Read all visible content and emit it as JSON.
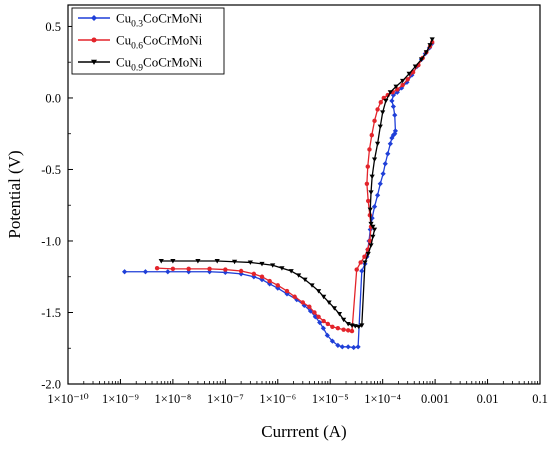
{
  "chart_data": {
    "type": "line",
    "title": "",
    "xlabel": "Currrent (A)",
    "ylabel": "Potential (V)",
    "xscale": "log",
    "xlim": [
      1e-10,
      0.1
    ],
    "ylim": [
      -2.0,
      0.65
    ],
    "grid": false,
    "legend_position": "top-left",
    "x_tick_labels": [
      "1×10⁻¹⁰",
      "1×10⁻⁹",
      "1×10⁻⁸",
      "1×10⁻⁷",
      "1×10⁻⁶",
      "1×10⁻⁵",
      "1×10⁻⁴",
      "0.001",
      "0.01",
      "0.1"
    ],
    "x_tick_values": [
      1e-10,
      1e-09,
      1e-08,
      1e-07,
      1e-06,
      1e-05,
      0.0001,
      0.001,
      0.01,
      0.1
    ],
    "y_tick_labels": [
      "0.5",
      "0.0",
      "-0.5",
      "-1.0",
      "-1.5",
      "-2.0"
    ],
    "y_tick_values": [
      0.5,
      0.0,
      -0.5,
      -1.0,
      -1.5,
      -2.0
    ],
    "series": [
      {
        "name_base": "Cu",
        "name_sub": "0.3",
        "name_rest": "CoCrMoNi",
        "color": "#1f3fd8",
        "marker": "diamond",
        "x": [
          1.2e-09,
          3e-09,
          8e-09,
          2e-08,
          5e-08,
          1e-07,
          2e-07,
          3.5e-07,
          5e-07,
          7e-07,
          1e-06,
          1.5e-06,
          2.3e-06,
          3.2e-06,
          4.2e-06,
          5.2e-06,
          6.3e-06,
          7.4e-06,
          8.8e-06,
          1.1e-05,
          1.4e-05,
          1.7e-05,
          2.2e-05,
          2.8e-05,
          3.4e-05,
          4e-05,
          4.6e-05,
          5e-05,
          5.2e-05,
          5.5e-05,
          5.8e-05,
          6.3e-05,
          7e-05,
          8e-05,
          9e-05,
          0.000102,
          0.000112,
          0.000125,
          0.00014,
          0.00015,
          0.00016,
          0.00017,
          0.000175,
          0.00017,
          0.00016,
          0.00015,
          0.00016,
          0.00019,
          0.00023,
          0.00029,
          0.00036,
          0.00045,
          0.00055,
          0.00065,
          0.00078,
          0.00087
        ],
        "y": [
          -1.215,
          -1.215,
          -1.215,
          -1.215,
          -1.215,
          -1.22,
          -1.23,
          -1.25,
          -1.27,
          -1.3,
          -1.33,
          -1.37,
          -1.41,
          -1.45,
          -1.49,
          -1.53,
          -1.57,
          -1.61,
          -1.66,
          -1.7,
          -1.73,
          -1.74,
          -1.74,
          -1.745,
          -1.74,
          -1.21,
          -1.16,
          -1.11,
          -1.06,
          -1.0,
          -0.92,
          -0.84,
          -0.76,
          -0.68,
          -0.6,
          -0.53,
          -0.46,
          -0.39,
          -0.32,
          -0.28,
          -0.26,
          -0.25,
          -0.23,
          -0.12,
          -0.06,
          -0.02,
          0.02,
          0.04,
          0.07,
          0.11,
          0.16,
          0.22,
          0.27,
          0.31,
          0.35,
          0.38
        ]
      },
      {
        "name_base": "Cu",
        "name_sub": "0.6",
        "name_rest": "CoCrMoNi",
        "color": "#e3242b",
        "marker": "circle",
        "x": [
          5e-09,
          1e-08,
          2e-08,
          5e-08,
          1e-07,
          2e-07,
          3.5e-07,
          5e-07,
          7e-07,
          1e-06,
          1.5e-06,
          2.1e-06,
          3e-06,
          4e-06,
          5e-06,
          6e-06,
          7.5e-06,
          9e-06,
          1.1e-05,
          1.4e-05,
          1.8e-05,
          2.2e-05,
          2.6e-05,
          3.2e-05,
          3.8e-05,
          4.5e-05,
          5.2e-05,
          5.7e-05,
          6e-05,
          5.7e-05,
          5.3e-05,
          5e-05,
          5.2e-05,
          5.6e-05,
          6.2e-05,
          7e-05,
          8e-05,
          9.2e-05,
          0.000105,
          0.000125,
          0.000155,
          0.00019,
          0.00024,
          0.0003,
          0.00038,
          0.00048,
          0.00058,
          0.00068,
          0.0008,
          0.00088
        ],
        "y": [
          -1.19,
          -1.195,
          -1.195,
          -1.195,
          -1.2,
          -1.21,
          -1.23,
          -1.25,
          -1.28,
          -1.31,
          -1.35,
          -1.39,
          -1.43,
          -1.46,
          -1.5,
          -1.53,
          -1.56,
          -1.58,
          -1.6,
          -1.61,
          -1.62,
          -1.625,
          -1.63,
          -1.2,
          -1.15,
          -1.11,
          -1.06,
          -1.0,
          -0.9,
          -0.82,
          -0.72,
          -0.6,
          -0.48,
          -0.36,
          -0.26,
          -0.16,
          -0.08,
          -0.03,
          0.0,
          0.02,
          0.04,
          0.06,
          0.09,
          0.13,
          0.18,
          0.23,
          0.28,
          0.32,
          0.36,
          0.39
        ]
      },
      {
        "name_base": "Cu",
        "name_sub": "0.9",
        "name_rest": "CoCrMoNi",
        "color": "#000000",
        "marker": "triangle-down",
        "x": [
          6e-09,
          1e-08,
          3e-08,
          7e-08,
          1.5e-07,
          3e-07,
          5e-07,
          8e-07,
          1.2e-06,
          1.8e-06,
          2.5e-06,
          3.3e-06,
          4.5e-06,
          6e-06,
          7.5e-06,
          9.5e-06,
          1.2e-05,
          1.5e-05,
          1.8e-05,
          2.2e-05,
          2.6e-05,
          3e-05,
          3.5e-05,
          4e-05,
          4.6e-05,
          5.3e-05,
          6e-05,
          6.5e-05,
          7e-05,
          6.5e-05,
          6e-05,
          5.8e-05,
          6e-05,
          6.3e-05,
          7e-05,
          8e-05,
          9e-05,
          0.0001,
          0.000115,
          0.00014,
          0.00018,
          0.00024,
          0.00032,
          0.00042,
          0.00055,
          0.00068,
          0.0008,
          0.00088
        ],
        "y": [
          -1.14,
          -1.14,
          -1.14,
          -1.14,
          -1.145,
          -1.15,
          -1.16,
          -1.17,
          -1.19,
          -1.21,
          -1.24,
          -1.27,
          -1.31,
          -1.35,
          -1.39,
          -1.43,
          -1.47,
          -1.51,
          -1.55,
          -1.58,
          -1.59,
          -1.595,
          -1.6,
          -1.59,
          -1.15,
          -1.09,
          -1.03,
          -0.97,
          -0.92,
          -0.9,
          -0.88,
          -0.78,
          -0.66,
          -0.55,
          -0.43,
          -0.32,
          -0.2,
          -0.1,
          -0.02,
          0.04,
          0.08,
          0.12,
          0.17,
          0.22,
          0.27,
          0.32,
          0.37,
          0.41
        ]
      }
    ]
  }
}
